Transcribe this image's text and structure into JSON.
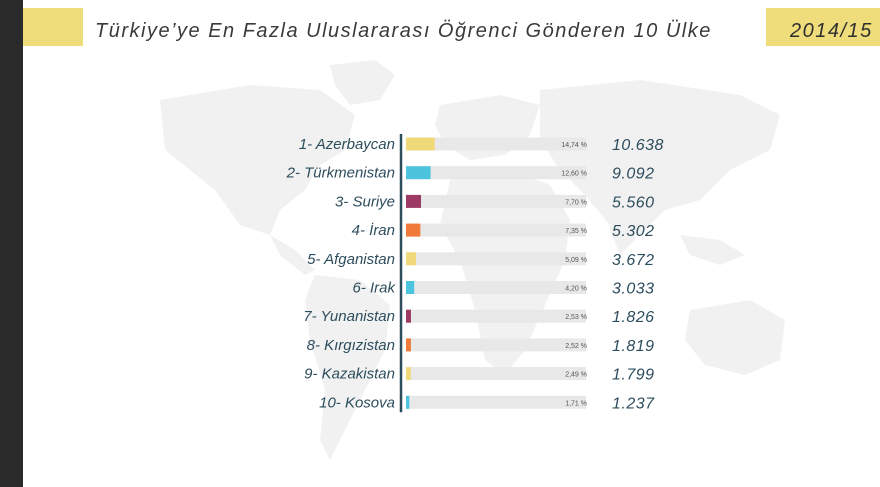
{
  "header": {
    "title": "Türkiye’ye En Fazla Uluslararası Öğrenci Gönderen 10 Ülke",
    "period": "2014/15"
  },
  "colors": {
    "accent_yellow": "#efdc7a",
    "series": [
      "#f0d97a",
      "#4cc4dd",
      "#9c3a64",
      "#ef7a3a",
      "#f0d97a",
      "#4cc4dd",
      "#9c3a64",
      "#ef7a3a",
      "#f0d97a",
      "#4cc4dd"
    ],
    "track": "#e8e8e8",
    "text": "#2d4d5d"
  },
  "chart_data": {
    "type": "bar",
    "title": "Türkiye’ye En Fazla Uluslararası Öğrenci Gönderen 10 Ülke",
    "subtitle": "2014/15",
    "categories": [
      "1- Azerbaycan",
      "2- Türkmenistan",
      "3- Suriye",
      "4- İran",
      "5- Afganistan",
      "6- Irak",
      "7- Yunanistan",
      "8- Kırgızistan",
      "9- Kazakistan",
      "10- Kosova"
    ],
    "percent_labels": [
      "14,74 %",
      "12,60 %",
      "7,70 %",
      "7,35 %",
      "5,09 %",
      "4,20 %",
      "2,53 %",
      "2,52 %",
      "2,49 %",
      "1,71 %"
    ],
    "percentages": [
      14.74,
      12.6,
      7.7,
      7.35,
      5.09,
      4.2,
      2.53,
      2.52,
      2.49,
      1.71
    ],
    "value_labels": [
      "10.638",
      "9.092",
      "5.560",
      "5.302",
      "3.672",
      "3.033",
      "1.826",
      "1.819",
      "1.799",
      "1.237"
    ],
    "values": [
      10638,
      9092,
      5560,
      5302,
      3672,
      3033,
      1826,
      1819,
      1799,
      1237
    ],
    "xlim": [
      0,
      100
    ],
    "orientation": "horizontal"
  }
}
